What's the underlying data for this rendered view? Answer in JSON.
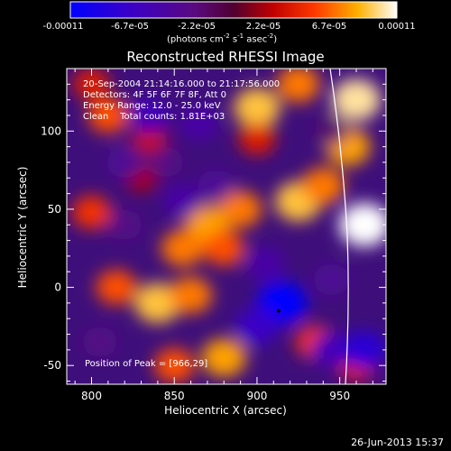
{
  "colorbar": {
    "ticks": [
      "-0.00011",
      "-6.7e-05",
      "-2.2e-05",
      "2.2e-05",
      "6.7e-05",
      "0.00011"
    ],
    "unit_main": "(photons cm",
    "unit_exp1": "-2",
    "unit_mid": " s",
    "unit_exp2": "-1",
    "unit_end": " asec",
    "unit_exp3": "-2",
    "unit_close": ")"
  },
  "chart_data": {
    "type": "heatmap",
    "title": "Reconstructed RHESSI Image",
    "xlabel": "Heliocentric X (arcsec)",
    "ylabel": "Heliocentric Y (arcsec)",
    "xlim": [
      785,
      978
    ],
    "ylim": [
      -62,
      140
    ],
    "xticks": [
      800,
      850,
      900,
      950
    ],
    "yticks": [
      -50,
      0,
      50,
      100
    ],
    "colorscale": {
      "min": -0.00011,
      "max": 0.00011,
      "map": "blue-purple-red-yellow-white"
    },
    "grid": false,
    "peak": {
      "x": 966,
      "y": 29
    },
    "annotations": [
      "20-Sep-2004 21:14:16.000 to 21:17:56.000",
      "Detectors: 4F 5F 6F 7F 8F, Att 0",
      "Energy Range: 12.0 - 25.0 keV",
      "Clean    Total counts: 1.81E+03"
    ],
    "peak_label": "Position of Peak = [966,29]",
    "blobs": [
      {
        "x": 810,
        "y": 110,
        "value": 6e-05
      },
      {
        "x": 835,
        "y": 95,
        "value": 3e-05
      },
      {
        "x": 900,
        "y": 115,
        "value": 9e-05
      },
      {
        "x": 925,
        "y": 130,
        "value": 7e-05
      },
      {
        "x": 960,
        "y": 120,
        "value": 0.0001
      },
      {
        "x": 955,
        "y": 90,
        "value": 8e-05
      },
      {
        "x": 965,
        "y": 40,
        "value": 0.00011
      },
      {
        "x": 925,
        "y": 55,
        "value": 9e-05
      },
      {
        "x": 890,
        "y": 50,
        "value": 7e-05
      },
      {
        "x": 870,
        "y": 40,
        "value": 8e-05
      },
      {
        "x": 855,
        "y": 25,
        "value": 7e-05
      },
      {
        "x": 880,
        "y": 25,
        "value": 6e-05
      },
      {
        "x": 800,
        "y": 48,
        "value": 5e-05
      },
      {
        "x": 815,
        "y": 0,
        "value": 6e-05
      },
      {
        "x": 840,
        "y": -10,
        "value": 9e-05
      },
      {
        "x": 860,
        "y": -5,
        "value": 7e-05
      },
      {
        "x": 880,
        "y": -45,
        "value": 8e-05
      },
      {
        "x": 850,
        "y": -50,
        "value": 6e-05
      },
      {
        "x": 935,
        "y": -35,
        "value": 5e-05
      },
      {
        "x": 960,
        "y": -50,
        "value": 4e-05
      },
      {
        "x": 900,
        "y": 95,
        "value": 4e-05
      },
      {
        "x": 830,
        "y": 70,
        "value": 2e-05
      },
      {
        "x": 835,
        "y": 110,
        "value": -6e-05
      },
      {
        "x": 820,
        "y": 80,
        "value": -4e-05
      },
      {
        "x": 845,
        "y": 80,
        "value": -3e-05
      },
      {
        "x": 865,
        "y": 105,
        "value": -5e-05
      },
      {
        "x": 875,
        "y": 65,
        "value": -4e-05
      },
      {
        "x": 855,
        "y": 55,
        "value": -5e-05
      },
      {
        "x": 915,
        "y": -10,
        "value": -0.00011
      },
      {
        "x": 900,
        "y": -25,
        "value": -7e-05
      },
      {
        "x": 905,
        "y": 15,
        "value": -5e-05
      },
      {
        "x": 945,
        "y": -40,
        "value": -6e-05
      },
      {
        "x": 965,
        "y": -40,
        "value": -8e-05
      },
      {
        "x": 945,
        "y": 5,
        "value": -4e-05
      },
      {
        "x": 805,
        "y": -35,
        "value": -3e-05
      },
      {
        "x": 820,
        "y": 40,
        "value": -3e-05
      },
      {
        "x": 945,
        "y": 100,
        "value": -2e-05
      },
      {
        "x": 800,
        "y": 130,
        "value": 4e-05
      },
      {
        "x": 940,
        "y": 65,
        "value": 7e-05
      }
    ]
  },
  "footer": {
    "date": "26-Jun-2013 15:37"
  }
}
